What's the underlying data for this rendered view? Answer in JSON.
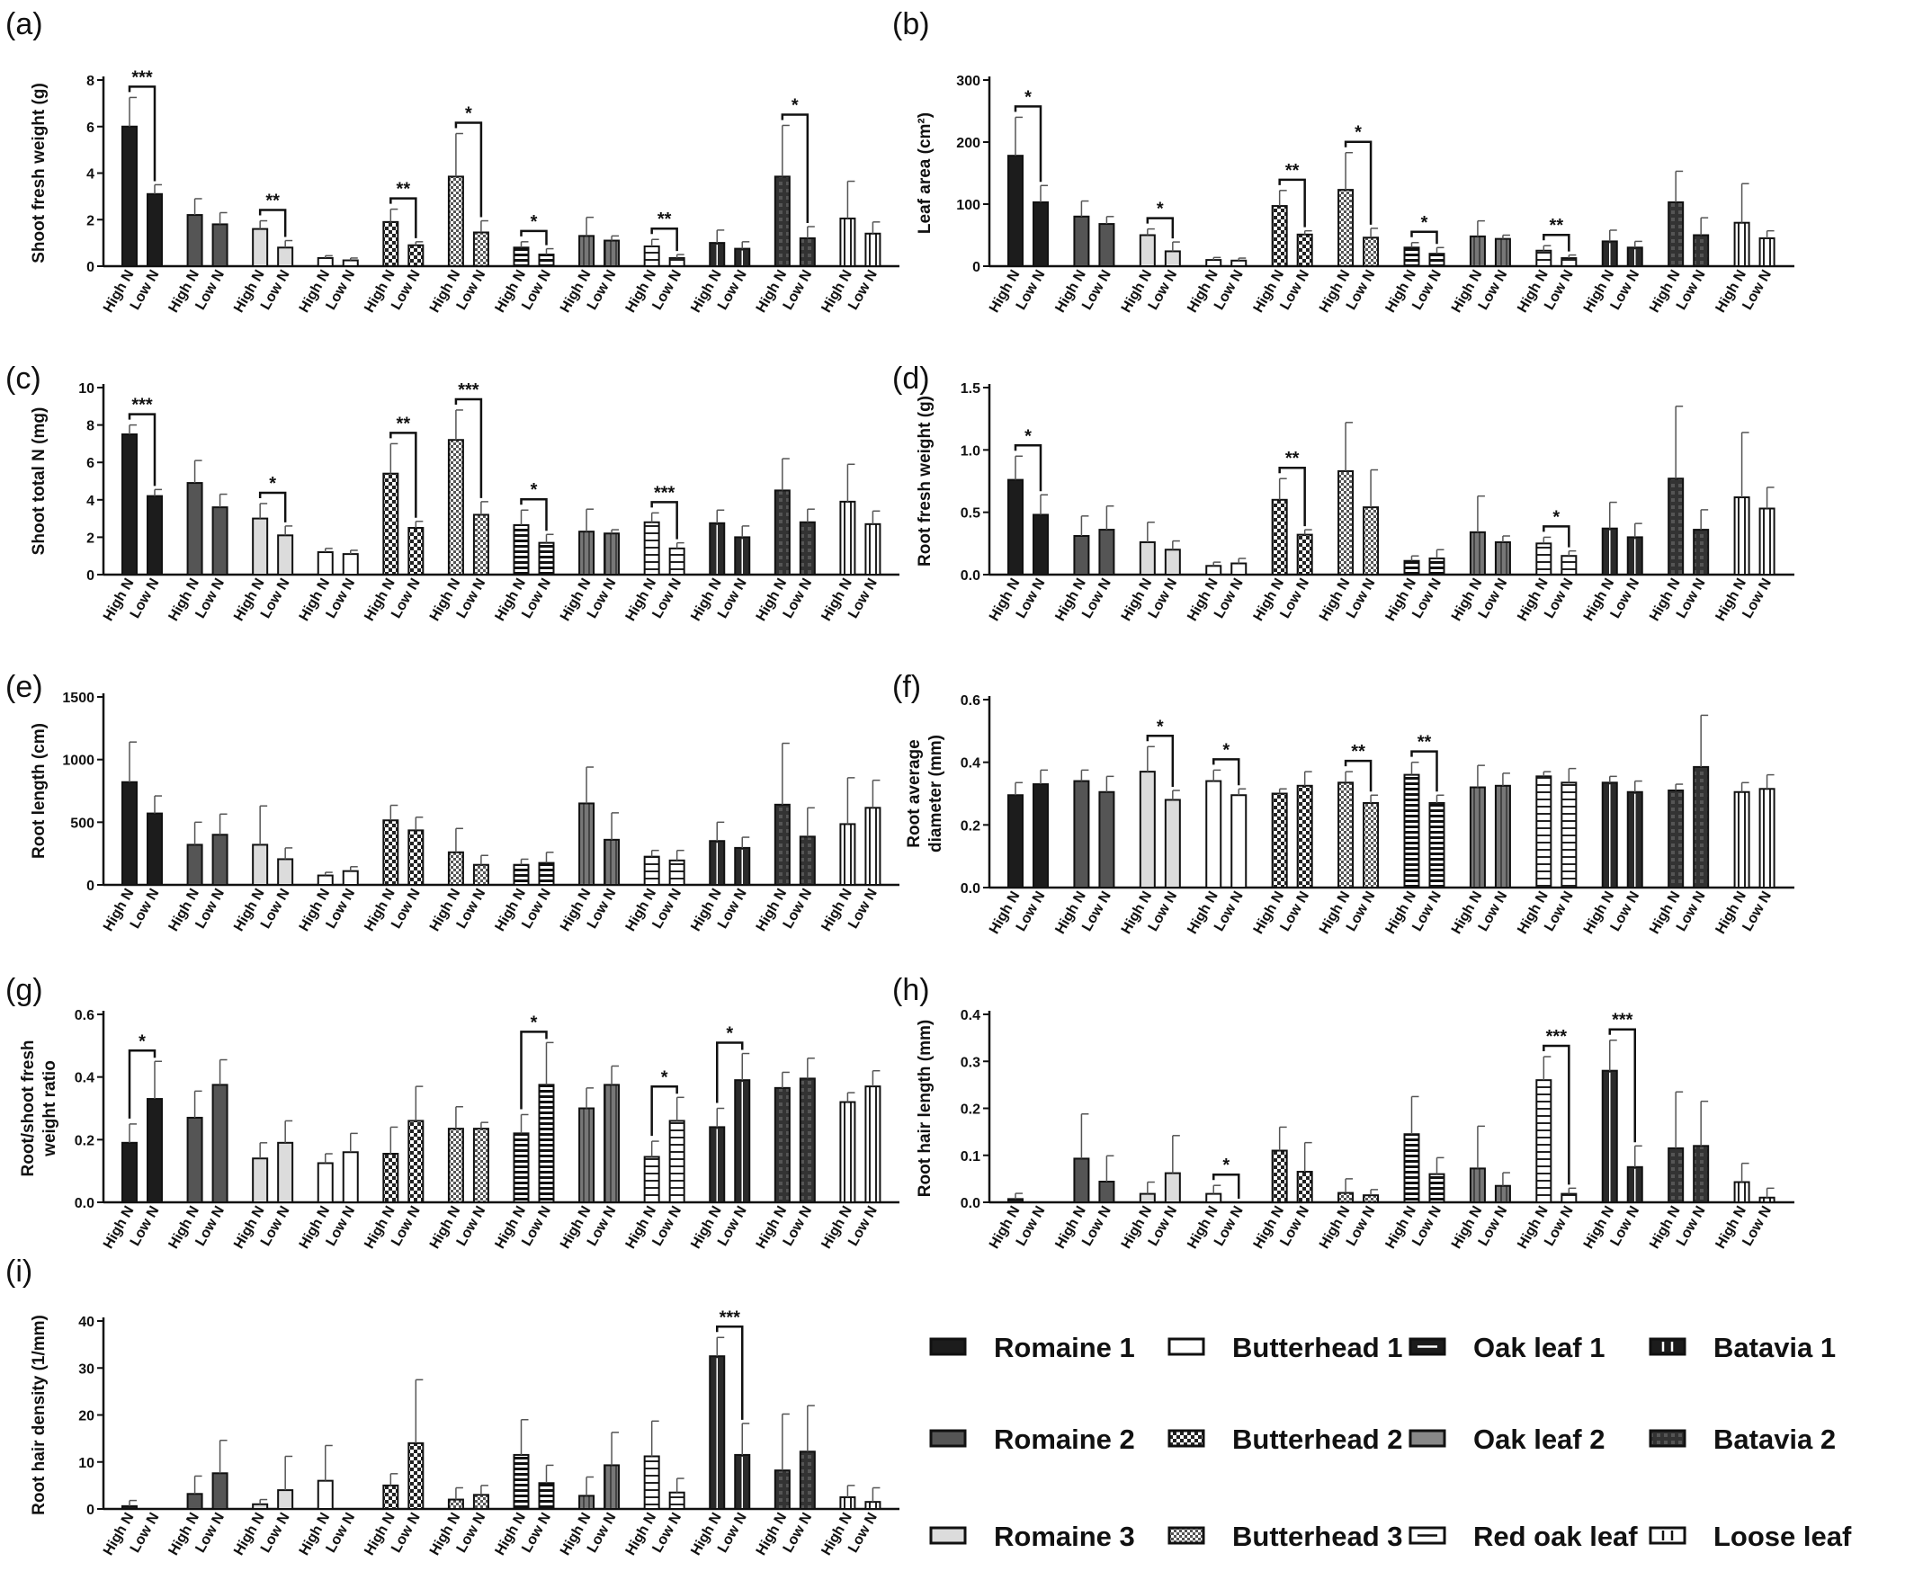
{
  "figure": {
    "x_labels": [
      "High N",
      "Low N"
    ],
    "legend_items": [
      {
        "id": "r1",
        "label": "Romaine 1"
      },
      {
        "id": "bh1",
        "label": "Butterhead 1"
      },
      {
        "id": "ok1",
        "label": "Oak leaf 1"
      },
      {
        "id": "bt1",
        "label": "Batavia 1"
      },
      {
        "id": "r2",
        "label": "Romaine 2"
      },
      {
        "id": "bh2",
        "label": "Butterhead 2"
      },
      {
        "id": "ok2",
        "label": "Oak leaf 2"
      },
      {
        "id": "bt2",
        "label": "Batavia 2"
      },
      {
        "id": "r3",
        "label": "Romaine 3"
      },
      {
        "id": "bh3",
        "label": "Butterhead 3"
      },
      {
        "id": "rok",
        "label": "Red oak leaf"
      },
      {
        "id": "ll",
        "label": "Loose leaf"
      }
    ]
  },
  "chart_data": [
    {
      "panel": "(a)",
      "type": "bar",
      "ylabel": "Shoot fresh weight (g)",
      "ylim": [
        0,
        8
      ],
      "yticks": [
        0,
        2,
        4,
        6,
        8
      ],
      "groups": [
        "Romaine 1",
        "Romaine 2",
        "Romaine 3",
        "Butterhead 1",
        "Butterhead 2",
        "Butterhead 3",
        "Oak leaf 1",
        "Oak leaf 2",
        "Red oak leaf",
        "Batavia 1",
        "Batavia 2",
        "Loose leaf"
      ],
      "series": [
        {
          "name": "High N",
          "values": [
            6.0,
            2.2,
            1.6,
            0.35,
            1.9,
            3.85,
            0.8,
            1.3,
            0.85,
            1.0,
            3.85,
            2.05
          ],
          "errors": [
            1.25,
            0.7,
            0.35,
            0.1,
            0.55,
            1.85,
            0.25,
            0.8,
            0.3,
            0.55,
            2.2,
            1.6
          ]
        },
        {
          "name": "Low N",
          "values": [
            3.1,
            1.8,
            0.8,
            0.25,
            0.9,
            1.45,
            0.5,
            1.1,
            0.35,
            0.75,
            1.2,
            1.4
          ],
          "errors": [
            0.4,
            0.5,
            0.3,
            0.1,
            0.15,
            0.5,
            0.25,
            0.2,
            0.15,
            0.3,
            0.5,
            0.5
          ]
        }
      ],
      "significance": [
        {
          "group": "Romaine 1",
          "label": "***"
        },
        {
          "group": "Romaine 3",
          "label": "**"
        },
        {
          "group": "Butterhead 2",
          "label": "**"
        },
        {
          "group": "Butterhead 3",
          "label": "*"
        },
        {
          "group": "Oak leaf 1",
          "label": "*"
        },
        {
          "group": "Red oak leaf",
          "label": "**"
        },
        {
          "group": "Batavia 2",
          "label": "*"
        }
      ]
    },
    {
      "panel": "(b)",
      "type": "bar",
      "ylabel": "Leaf area (cm²)",
      "ylim": [
        0,
        300
      ],
      "yticks": [
        0,
        100,
        200,
        300
      ],
      "groups": [
        "Romaine 1",
        "Romaine 2",
        "Romaine 3",
        "Butterhead 1",
        "Butterhead 2",
        "Butterhead 3",
        "Oak leaf 1",
        "Oak leaf 2",
        "Red oak leaf",
        "Batavia 1",
        "Batavia 2",
        "Loose leaf"
      ],
      "series": [
        {
          "name": "High N",
          "values": [
            178,
            80,
            50,
            10,
            97,
            123,
            30,
            48,
            25,
            40,
            103,
            70
          ],
          "errors": [
            62,
            25,
            10,
            4,
            25,
            60,
            8,
            25,
            8,
            18,
            50,
            63
          ]
        },
        {
          "name": "Low N",
          "values": [
            103,
            68,
            24,
            9,
            51,
            46,
            20,
            44,
            13,
            30,
            50,
            45
          ],
          "errors": [
            27,
            12,
            15,
            4,
            6,
            15,
            10,
            6,
            5,
            10,
            28,
            12
          ]
        }
      ],
      "significance": [
        {
          "group": "Romaine 1",
          "label": "*"
        },
        {
          "group": "Romaine 3",
          "label": "*"
        },
        {
          "group": "Butterhead 2",
          "label": "**"
        },
        {
          "group": "Butterhead 3",
          "label": "*"
        },
        {
          "group": "Oak leaf 1",
          "label": "*"
        },
        {
          "group": "Red oak leaf",
          "label": "**"
        }
      ]
    },
    {
      "panel": "(c)",
      "type": "bar",
      "ylabel": "Shoot total N (mg)",
      "ylim": [
        0,
        10
      ],
      "yticks": [
        0,
        2,
        4,
        6,
        8,
        10
      ],
      "groups": [
        "Romaine 1",
        "Romaine 2",
        "Romaine 3",
        "Butterhead 1",
        "Butterhead 2",
        "Butterhead 3",
        "Oak leaf 1",
        "Oak leaf 2",
        "Red oak leaf",
        "Batavia 1",
        "Batavia 2",
        "Loose leaf"
      ],
      "series": [
        {
          "name": "High N",
          "values": [
            7.5,
            4.9,
            3.0,
            1.2,
            5.4,
            7.2,
            2.65,
            2.3,
            2.8,
            2.75,
            4.5,
            3.9
          ],
          "errors": [
            0.5,
            1.2,
            0.8,
            0.2,
            1.6,
            1.6,
            0.8,
            1.2,
            0.5,
            0.7,
            1.7,
            2.0
          ]
        },
        {
          "name": "Low N",
          "values": [
            4.2,
            3.6,
            2.1,
            1.1,
            2.5,
            3.2,
            1.7,
            2.2,
            1.4,
            2.0,
            2.8,
            2.7
          ],
          "errors": [
            0.35,
            0.7,
            0.5,
            0.2,
            0.35,
            0.7,
            0.45,
            0.2,
            0.3,
            0.6,
            0.7,
            0.7
          ]
        }
      ],
      "significance": [
        {
          "group": "Romaine 1",
          "label": "***"
        },
        {
          "group": "Romaine 3",
          "label": "*"
        },
        {
          "group": "Butterhead 2",
          "label": "**"
        },
        {
          "group": "Butterhead 3",
          "label": "***"
        },
        {
          "group": "Oak leaf 1",
          "label": "*"
        },
        {
          "group": "Red oak leaf",
          "label": "***"
        }
      ]
    },
    {
      "panel": "(d)",
      "type": "bar",
      "ylabel": "Root fresh weight (g)",
      "ylim": [
        0,
        1.5
      ],
      "yticks": [
        0.0,
        0.5,
        1.0,
        1.5
      ],
      "groups": [
        "Romaine 1",
        "Romaine 2",
        "Romaine 3",
        "Butterhead 1",
        "Butterhead 2",
        "Butterhead 3",
        "Oak leaf 1",
        "Oak leaf 2",
        "Red oak leaf",
        "Batavia 1",
        "Batavia 2",
        "Loose leaf"
      ],
      "series": [
        {
          "name": "High N",
          "values": [
            0.76,
            0.31,
            0.26,
            0.07,
            0.6,
            0.83,
            0.11,
            0.34,
            0.25,
            0.37,
            0.77,
            0.62
          ],
          "errors": [
            0.19,
            0.16,
            0.16,
            0.03,
            0.17,
            0.39,
            0.04,
            0.29,
            0.05,
            0.21,
            0.58,
            0.52
          ]
        },
        {
          "name": "Low N",
          "values": [
            0.48,
            0.36,
            0.2,
            0.09,
            0.32,
            0.54,
            0.13,
            0.26,
            0.15,
            0.3,
            0.36,
            0.53
          ],
          "errors": [
            0.16,
            0.19,
            0.07,
            0.04,
            0.04,
            0.3,
            0.07,
            0.05,
            0.04,
            0.11,
            0.16,
            0.17
          ]
        }
      ],
      "significance": [
        {
          "group": "Romaine 1",
          "label": "*"
        },
        {
          "group": "Butterhead 2",
          "label": "**"
        },
        {
          "group": "Red oak leaf",
          "label": "*"
        }
      ]
    },
    {
      "panel": "(e)",
      "type": "bar",
      "ylabel": "Root length (cm)",
      "ylim": [
        0,
        1500
      ],
      "yticks": [
        0,
        500,
        1000,
        1500
      ],
      "groups": [
        "Romaine 1",
        "Romaine 2",
        "Romaine 3",
        "Butterhead 1",
        "Butterhead 2",
        "Butterhead 3",
        "Oak leaf 1",
        "Oak leaf 2",
        "Red oak leaf",
        "Batavia 1",
        "Batavia 2",
        "Loose leaf"
      ],
      "series": [
        {
          "name": "High N",
          "values": [
            820,
            320,
            320,
            75,
            515,
            260,
            160,
            650,
            225,
            350,
            640,
            485
          ],
          "errors": [
            320,
            180,
            310,
            25,
            120,
            190,
            45,
            290,
            50,
            150,
            490,
            370
          ]
        },
        {
          "name": "Low N",
          "values": [
            570,
            400,
            205,
            110,
            435,
            160,
            175,
            360,
            195,
            295,
            385,
            615
          ],
          "errors": [
            140,
            165,
            90,
            35,
            105,
            75,
            85,
            215,
            80,
            85,
            230,
            220
          ]
        }
      ],
      "significance": []
    },
    {
      "panel": "(f)",
      "type": "bar",
      "ylabel": "Root average diameter (mm)",
      "ylim": [
        0,
        0.6
      ],
      "yticks": [
        0.0,
        0.2,
        0.4,
        0.6
      ],
      "groups": [
        "Romaine 1",
        "Romaine 2",
        "Romaine 3",
        "Butterhead 1",
        "Butterhead 2",
        "Butterhead 3",
        "Oak leaf 1",
        "Oak leaf 2",
        "Red oak leaf",
        "Batavia 1",
        "Batavia 2",
        "Loose leaf"
      ],
      "series": [
        {
          "name": "High N",
          "values": [
            0.295,
            0.34,
            0.37,
            0.34,
            0.3,
            0.335,
            0.36,
            0.32,
            0.355,
            0.335,
            0.31,
            0.305
          ],
          "errors": [
            0.04,
            0.035,
            0.08,
            0.035,
            0.015,
            0.035,
            0.04,
            0.07,
            0.015,
            0.02,
            0.02,
            0.03
          ]
        },
        {
          "name": "Low N",
          "values": [
            0.33,
            0.305,
            0.28,
            0.295,
            0.325,
            0.27,
            0.27,
            0.325,
            0.335,
            0.305,
            0.385,
            0.315
          ],
          "errors": [
            0.045,
            0.05,
            0.03,
            0.02,
            0.045,
            0.025,
            0.025,
            0.04,
            0.045,
            0.035,
            0.165,
            0.045
          ]
        }
      ],
      "significance": [
        {
          "group": "Romaine 3",
          "label": "*"
        },
        {
          "group": "Butterhead 1",
          "label": "*"
        },
        {
          "group": "Butterhead 3",
          "label": "**"
        },
        {
          "group": "Oak leaf 1",
          "label": "**"
        }
      ]
    },
    {
      "panel": "(g)",
      "type": "bar",
      "ylabel": "Root/shoot fresh weight ratio",
      "ylim": [
        0,
        0.6
      ],
      "yticks": [
        0.0,
        0.2,
        0.4,
        0.6
      ],
      "groups": [
        "Romaine 1",
        "Romaine 2",
        "Romaine 3",
        "Butterhead 1",
        "Butterhead 2",
        "Butterhead 3",
        "Oak leaf 1",
        "Oak leaf 2",
        "Red oak leaf",
        "Batavia 1",
        "Batavia 2",
        "Loose leaf"
      ],
      "series": [
        {
          "name": "High N",
          "values": [
            0.19,
            0.27,
            0.14,
            0.125,
            0.155,
            0.235,
            0.22,
            0.3,
            0.145,
            0.24,
            0.365,
            0.32
          ],
          "errors": [
            0.06,
            0.085,
            0.05,
            0.03,
            0.085,
            0.07,
            0.06,
            0.065,
            0.05,
            0.06,
            0.05,
            0.03
          ]
        },
        {
          "name": "Low N",
          "values": [
            0.33,
            0.375,
            0.19,
            0.16,
            0.26,
            0.235,
            0.375,
            0.375,
            0.26,
            0.39,
            0.395,
            0.37
          ],
          "errors": [
            0.12,
            0.08,
            0.07,
            0.06,
            0.11,
            0.02,
            0.135,
            0.06,
            0.075,
            0.085,
            0.065,
            0.05
          ]
        }
      ],
      "significance": [
        {
          "group": "Romaine 1",
          "label": "*"
        },
        {
          "group": "Oak leaf 1",
          "label": "*"
        },
        {
          "group": "Red oak leaf",
          "label": "*"
        },
        {
          "group": "Batavia 1",
          "label": "*"
        }
      ]
    },
    {
      "panel": "(h)",
      "type": "bar",
      "ylabel": "Root hair length (mm)",
      "ylim": [
        0,
        0.4
      ],
      "yticks": [
        0.0,
        0.1,
        0.2,
        0.3,
        0.4
      ],
      "groups": [
        "Romaine 1",
        "Romaine 2",
        "Romaine 3",
        "Butterhead 1",
        "Butterhead 2",
        "Butterhead 3",
        "Oak leaf 1",
        "Oak leaf 2",
        "Red oak leaf",
        "Batavia 1",
        "Batavia 2",
        "Loose leaf"
      ],
      "series": [
        {
          "name": "High N",
          "values": [
            0.007,
            0.093,
            0.018,
            0.018,
            0.11,
            0.02,
            0.145,
            0.072,
            0.26,
            0.28,
            0.115,
            0.043
          ],
          "errors": [
            0.012,
            0.095,
            0.025,
            0.018,
            0.05,
            0.03,
            0.08,
            0.09,
            0.05,
            0.065,
            0.12,
            0.04
          ]
        },
        {
          "name": "Low N",
          "values": [
            0.0,
            0.044,
            0.062,
            0.0,
            0.065,
            0.015,
            0.06,
            0.035,
            0.018,
            0.075,
            0.12,
            0.01
          ],
          "errors": [
            0.0,
            0.055,
            0.08,
            0.0,
            0.062,
            0.012,
            0.035,
            0.028,
            0.012,
            0.045,
            0.095,
            0.02
          ]
        }
      ],
      "significance": [
        {
          "group": "Butterhead 1",
          "label": "*"
        },
        {
          "group": "Red oak leaf",
          "label": "***"
        },
        {
          "group": "Batavia 1",
          "label": "***"
        }
      ]
    },
    {
      "panel": "(i)",
      "type": "bar",
      "ylabel": "Root hair density (1/mm)",
      "ylim": [
        0,
        40
      ],
      "yticks": [
        0,
        10,
        20,
        30,
        40
      ],
      "groups": [
        "Romaine 1",
        "Romaine 2",
        "Romaine 3",
        "Butterhead 1",
        "Butterhead 2",
        "Butterhead 3",
        "Oak leaf 1",
        "Oak leaf 2",
        "Red oak leaf",
        "Batavia 1",
        "Batavia 2",
        "Loose leaf"
      ],
      "series": [
        {
          "name": "High N",
          "values": [
            0.6,
            3.2,
            1.0,
            6.0,
            5.0,
            2.0,
            11.5,
            2.8,
            11.2,
            32.5,
            8.2,
            2.5
          ],
          "errors": [
            1.2,
            3.8,
            1.0,
            7.5,
            2.5,
            2.5,
            7.5,
            4.0,
            7.5,
            4.0,
            12.0,
            2.5
          ]
        },
        {
          "name": "Low N",
          "values": [
            0.0,
            7.6,
            4.0,
            0.0,
            14.0,
            3.0,
            5.5,
            9.3,
            3.5,
            11.5,
            12.2,
            1.5
          ],
          "errors": [
            0.0,
            7.0,
            7.2,
            0.0,
            13.5,
            2.0,
            3.8,
            7.0,
            3.0,
            6.7,
            9.8,
            3.0
          ]
        }
      ],
      "significance": [
        {
          "group": "Batavia 1",
          "label": "***"
        }
      ]
    }
  ]
}
